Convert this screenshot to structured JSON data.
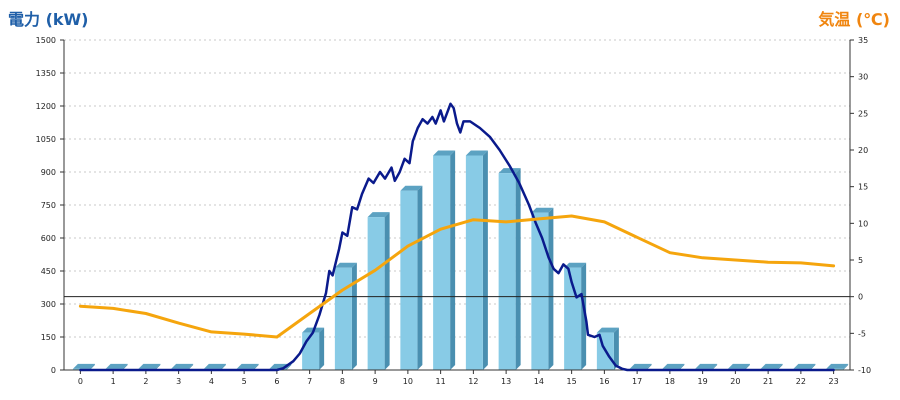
{
  "chart_data": {
    "type": "bar",
    "title_left": "電力 (kW)",
    "title_right": "気温 (℃)",
    "hours": [
      "0",
      "1",
      "2",
      "3",
      "4",
      "5",
      "6",
      "7",
      "8",
      "9",
      "10",
      "11",
      "12",
      "13",
      "14",
      "15",
      "16",
      "17",
      "18",
      "19",
      "20",
      "21",
      "22",
      "23"
    ],
    "power_axis": {
      "min": 0,
      "max": 1500,
      "ticks": [
        "0",
        "150",
        "300",
        "450",
        "600",
        "750",
        "900",
        "1050",
        "1200",
        "1350",
        "1500"
      ]
    },
    "temp_axis": {
      "min": -10,
      "max": 35,
      "ticks": [
        "-10",
        "-5",
        "0",
        "5",
        "10",
        "15",
        "20",
        "25",
        "30",
        "35"
      ]
    },
    "series": [
      {
        "kind": "bar",
        "axis": "power",
        "values": [
          5,
          5,
          5,
          5,
          5,
          5,
          5,
          170,
          465,
          695,
          815,
          975,
          975,
          895,
          715,
          465,
          170,
          5,
          5,
          5,
          5,
          5,
          5,
          5
        ]
      },
      {
        "kind": "line",
        "axis": "power",
        "color": "#0a1a8c",
        "points": [
          [
            0,
            0
          ],
          [
            6,
            0
          ],
          [
            6.2,
            8
          ],
          [
            6.5,
            40
          ],
          [
            6.7,
            75
          ],
          [
            6.9,
            130
          ],
          [
            7.1,
            170
          ],
          [
            7.3,
            250
          ],
          [
            7.5,
            350
          ],
          [
            7.6,
            450
          ],
          [
            7.7,
            430
          ],
          [
            7.9,
            550
          ],
          [
            8.0,
            625
          ],
          [
            8.15,
            610
          ],
          [
            8.3,
            740
          ],
          [
            8.45,
            730
          ],
          [
            8.6,
            800
          ],
          [
            8.8,
            870
          ],
          [
            8.95,
            850
          ],
          [
            9.15,
            900
          ],
          [
            9.3,
            870
          ],
          [
            9.5,
            920
          ],
          [
            9.6,
            860
          ],
          [
            9.75,
            900
          ],
          [
            9.9,
            960
          ],
          [
            10.05,
            940
          ],
          [
            10.15,
            1040
          ],
          [
            10.3,
            1100
          ],
          [
            10.45,
            1140
          ],
          [
            10.6,
            1120
          ],
          [
            10.75,
            1150
          ],
          [
            10.85,
            1120
          ],
          [
            11.0,
            1180
          ],
          [
            11.1,
            1130
          ],
          [
            11.3,
            1210
          ],
          [
            11.4,
            1190
          ],
          [
            11.5,
            1120
          ],
          [
            11.6,
            1080
          ],
          [
            11.7,
            1130
          ],
          [
            11.9,
            1130
          ],
          [
            12.2,
            1100
          ],
          [
            12.5,
            1060
          ],
          [
            12.8,
            1000
          ],
          [
            13.1,
            930
          ],
          [
            13.4,
            850
          ],
          [
            13.7,
            750
          ],
          [
            13.9,
            670
          ],
          [
            14.1,
            600
          ],
          [
            14.3,
            510
          ],
          [
            14.45,
            460
          ],
          [
            14.6,
            440
          ],
          [
            14.75,
            480
          ],
          [
            14.9,
            460
          ],
          [
            15.0,
            400
          ],
          [
            15.15,
            330
          ],
          [
            15.3,
            345
          ],
          [
            15.45,
            220
          ],
          [
            15.5,
            160
          ],
          [
            15.7,
            150
          ],
          [
            15.85,
            160
          ],
          [
            15.95,
            110
          ],
          [
            16.15,
            60
          ],
          [
            16.35,
            20
          ],
          [
            16.55,
            5
          ],
          [
            16.7,
            0
          ],
          [
            23,
            0
          ]
        ]
      },
      {
        "kind": "line",
        "axis": "temp",
        "color": "#f5a50d",
        "points": [
          [
            0,
            -1.3
          ],
          [
            1,
            -1.6
          ],
          [
            2,
            -2.3
          ],
          [
            3,
            -3.6
          ],
          [
            4,
            -4.8
          ],
          [
            5,
            -5.1
          ],
          [
            6,
            -5.5
          ],
          [
            7,
            -2.3
          ],
          [
            8,
            0.9
          ],
          [
            9,
            3.6
          ],
          [
            10,
            6.9
          ],
          [
            11,
            9.2
          ],
          [
            12,
            10.5
          ],
          [
            13,
            10.2
          ],
          [
            14,
            10.6
          ],
          [
            15,
            11.0
          ],
          [
            16,
            10.2
          ],
          [
            17,
            8.1
          ],
          [
            18,
            6.0
          ],
          [
            19,
            5.3
          ],
          [
            20,
            5.0
          ],
          [
            21,
            4.7
          ],
          [
            22,
            4.6
          ],
          [
            23,
            4.2
          ]
        ]
      }
    ]
  }
}
